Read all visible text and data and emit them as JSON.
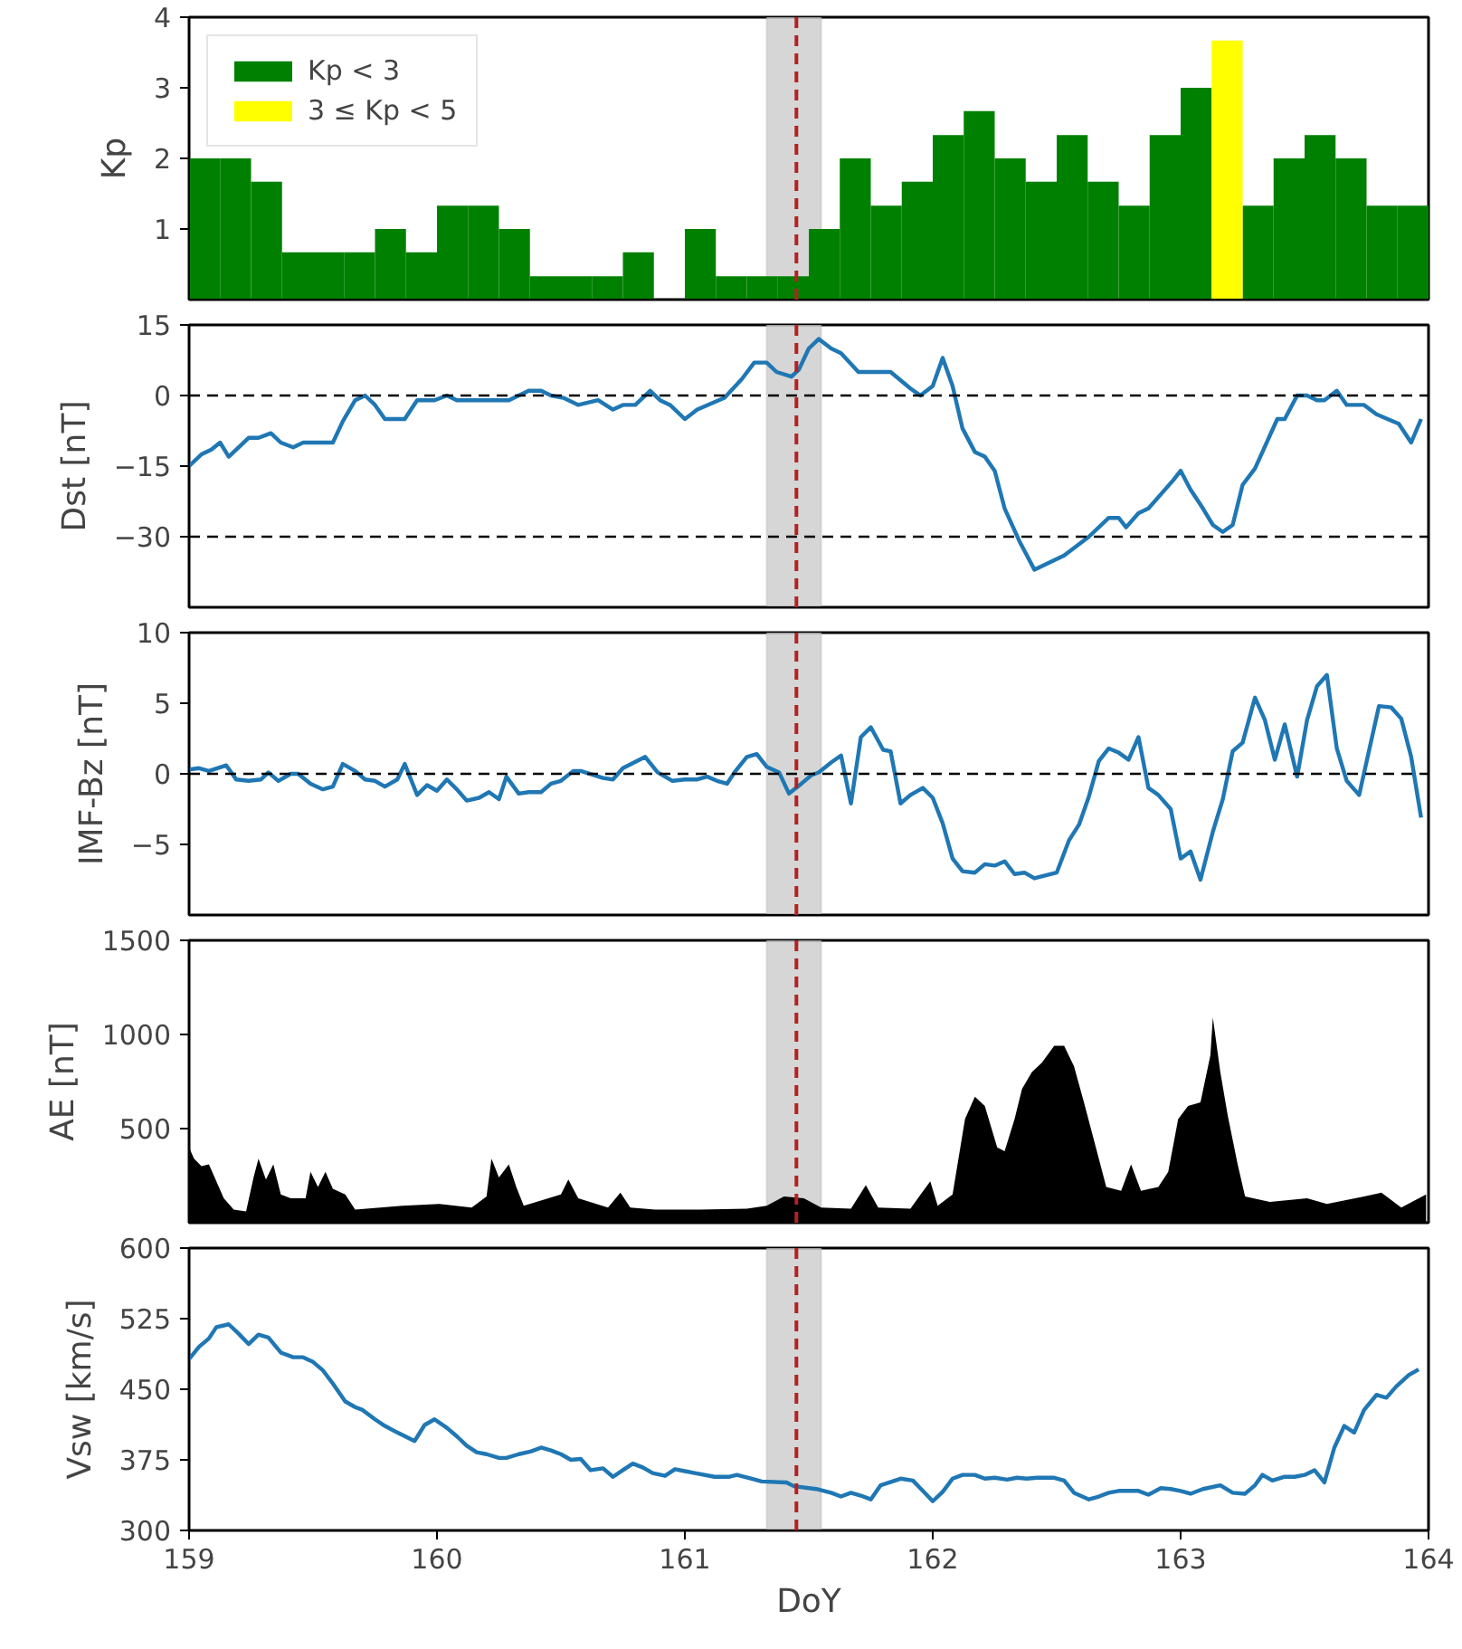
{
  "chart_data": [
    {
      "type": "bar",
      "ylabel": "Kp",
      "x": [
        159.0625,
        159.1875,
        159.3125,
        159.4375,
        159.5625,
        159.6875,
        159.8125,
        159.9375,
        160.0625,
        160.1875,
        160.3125,
        160.4375,
        160.5625,
        160.6875,
        160.8125,
        160.9375,
        161.0625,
        161.1875,
        161.3125,
        161.4375,
        161.5625,
        161.6875,
        161.8125,
        161.9375,
        162.0625,
        162.1875,
        162.3125,
        162.4375,
        162.5625,
        162.6875,
        162.8125,
        162.9375,
        163.0625,
        163.1875,
        163.3125,
        163.4375,
        163.5625,
        163.6875,
        163.8125,
        163.9375
      ],
      "series": [
        {
          "name": "Kp < 3",
          "color": "#008000",
          "values": [
            2,
            2,
            1.67,
            0.67,
            0.67,
            0.67,
            1,
            0.67,
            1.33,
            1.33,
            1,
            0.33,
            0.33,
            0.33,
            0.67,
            0,
            1,
            0.33,
            0.33,
            0.33,
            1,
            2,
            1.33,
            1.67,
            2.33,
            2.67,
            2,
            1.67,
            2.33,
            1.67,
            1.33,
            2.33,
            3,
            null,
            1.33,
            2,
            2.33,
            2,
            1.33,
            1.33
          ]
        },
        {
          "name": "3 ≤ Kp < 5",
          "color": "#ffff00",
          "values": [
            null,
            null,
            null,
            null,
            null,
            null,
            null,
            null,
            null,
            null,
            null,
            null,
            null,
            null,
            null,
            null,
            null,
            null,
            null,
            null,
            null,
            null,
            null,
            null,
            null,
            null,
            null,
            null,
            null,
            null,
            null,
            null,
            null,
            3.67,
            null,
            null,
            null,
            null,
            null,
            null
          ]
        }
      ],
      "xlim": [
        159,
        164
      ],
      "xticks": [
        159,
        160,
        161,
        162,
        163,
        164
      ],
      "ylim": [
        0,
        4
      ],
      "yticks": [
        1,
        2,
        3,
        4
      ],
      "tick_labels": "y",
      "legend": "top left",
      "grid": false,
      "bands": [
        {
          "axis": "x",
          "from": 161.33,
          "to": 161.55,
          "color": "#c8c8c8"
        }
      ],
      "ref_lines": [
        {
          "axis": "x",
          "value": 161.45,
          "color": "#b22222",
          "line_style": "dashed"
        }
      ]
    },
    {
      "type": "line",
      "ylabel": "Dst [nT]",
      "x": [
        159.0,
        159.05,
        159.09,
        159.125,
        159.16,
        159.24,
        159.28,
        159.33,
        159.37,
        159.42,
        159.46,
        159.58,
        159.62,
        159.67,
        159.71,
        159.75,
        159.79,
        159.87,
        159.92,
        159.99,
        160.04,
        160.08,
        160.29,
        160.37,
        160.42,
        160.46,
        160.51,
        160.57,
        160.65,
        160.71,
        160.75,
        160.8,
        160.86,
        160.9,
        160.94,
        161.0,
        161.05,
        161.16,
        161.23,
        161.28,
        161.33,
        161.37,
        161.43,
        161.46,
        161.5,
        161.54,
        161.59,
        161.63,
        161.7,
        161.83,
        161.91,
        161.95,
        162.0,
        162.04,
        162.08,
        162.12,
        162.17,
        162.21,
        162.25,
        162.29,
        162.35,
        162.38,
        162.41,
        162.53,
        162.63,
        162.71,
        162.75,
        162.78,
        162.83,
        162.87,
        162.97,
        163.0,
        163.04,
        163.09,
        163.13,
        163.17,
        163.21,
        163.25,
        163.3,
        163.39,
        163.42,
        163.47,
        163.51,
        163.55,
        163.58,
        163.63,
        163.67,
        163.74,
        163.79,
        163.88,
        163.93,
        163.97
      ],
      "series": [
        {
          "color": "#1f77b4",
          "values": [
            -15,
            -12.5,
            -11.5,
            -10,
            -13,
            -9,
            -9,
            -8,
            -10,
            -11,
            -10,
            -10,
            -5.5,
            -1,
            0,
            -2,
            -5,
            -5,
            -1,
            -1,
            0,
            -1,
            -1,
            1,
            1,
            0,
            -0.5,
            -2,
            -1,
            -3,
            -2,
            -2,
            1,
            -1,
            -2,
            -5,
            -3,
            -0.5,
            3.5,
            7,
            7,
            5,
            4,
            5.5,
            10,
            12,
            10,
            9,
            5,
            5,
            1.5,
            0,
            2,
            8,
            2,
            -7,
            -12,
            -13,
            -16,
            -24,
            -31,
            -34,
            -37,
            -34,
            -30,
            -26,
            -26,
            -28,
            -25,
            -24,
            -18,
            -16,
            -20,
            -24,
            -27.5,
            -29,
            -27.5,
            -19,
            -15.5,
            -5,
            -5,
            0,
            0,
            -1,
            -1,
            1,
            -2,
            -2,
            -4,
            -6,
            -10,
            -5
          ]
        }
      ],
      "xlim": [
        159,
        164
      ],
      "xticks": [
        159,
        160,
        161,
        162,
        163,
        164
      ],
      "ylim": [
        -45,
        15
      ],
      "yticks": [
        {
          "value": -30,
          "label": "−30"
        },
        {
          "value": -15,
          "label": "−15"
        },
        0,
        15
      ],
      "tick_labels": "y",
      "grid": false,
      "bands": [
        {
          "axis": "x",
          "from": 161.33,
          "to": 161.55,
          "color": "#c8c8c8"
        }
      ],
      "ref_lines": [
        {
          "axis": "x",
          "value": 161.45,
          "color": "#b22222",
          "line_style": "dashed"
        },
        {
          "axis": "y",
          "value": 0,
          "color": "#000000",
          "line_style": "dashed"
        },
        {
          "axis": "y",
          "value": -30,
          "color": "#000000",
          "line_style": "dashed"
        }
      ]
    },
    {
      "type": "line",
      "ylabel": "IMF-Bz [nT]",
      "x": [
        159.0,
        159.04,
        159.08,
        159.15,
        159.19,
        159.24,
        159.29,
        159.32,
        159.36,
        159.41,
        159.44,
        159.49,
        159.54,
        159.58,
        159.62,
        159.67,
        159.71,
        159.75,
        159.79,
        159.84,
        159.87,
        159.92,
        159.96,
        160.0,
        160.04,
        160.08,
        160.12,
        160.17,
        160.21,
        160.25,
        160.28,
        160.33,
        160.37,
        160.42,
        160.46,
        160.5,
        160.55,
        160.58,
        160.67,
        160.71,
        160.75,
        160.84,
        160.89,
        160.95,
        161.0,
        161.05,
        161.09,
        161.13,
        161.17,
        161.2,
        161.25,
        161.29,
        161.33,
        161.38,
        161.42,
        161.47,
        161.51,
        161.54,
        161.59,
        161.63,
        161.67,
        161.71,
        161.75,
        161.8,
        161.83,
        161.87,
        161.91,
        161.96,
        162.0,
        162.04,
        162.08,
        162.12,
        162.17,
        162.21,
        162.25,
        162.29,
        162.33,
        162.37,
        162.41,
        162.5,
        162.55,
        162.59,
        162.63,
        162.67,
        162.71,
        162.75,
        162.79,
        162.83,
        162.87,
        162.91,
        162.96,
        163.0,
        163.04,
        163.08,
        163.13,
        163.17,
        163.21,
        163.25,
        163.3,
        163.34,
        163.38,
        163.42,
        163.47,
        163.51,
        163.55,
        163.59,
        163.63,
        163.67,
        163.72,
        163.8,
        163.85,
        163.89,
        163.93,
        163.97
      ],
      "series": [
        {
          "color": "#1f77b4",
          "values": [
            0.3,
            0.4,
            0.2,
            0.6,
            -0.4,
            -0.5,
            -0.4,
            0.1,
            -0.5,
            0,
            0,
            -0.7,
            -1.1,
            -0.9,
            0.7,
            0.2,
            -0.4,
            -0.5,
            -0.9,
            -0.4,
            0.7,
            -1.5,
            -0.8,
            -1.2,
            -0.4,
            -1.1,
            -1.9,
            -1.7,
            -1.3,
            -1.8,
            -0.2,
            -1.4,
            -1.3,
            -1.3,
            -0.7,
            -0.5,
            0.2,
            0.2,
            -0.3,
            -0.4,
            0.4,
            1.2,
            0.1,
            -0.5,
            -0.4,
            -0.4,
            -0.2,
            -0.5,
            -0.7,
            0.1,
            1.2,
            1.4,
            0.5,
            0.1,
            -1.4,
            -0.7,
            -0.1,
            0.1,
            0.8,
            1.3,
            -2.1,
            2.6,
            3.3,
            1.7,
            1.6,
            -2.1,
            -1.5,
            -1,
            -1.7,
            -3.5,
            -6,
            -6.9,
            -7,
            -6.4,
            -6.5,
            -6.2,
            -7.1,
            -7,
            -7.4,
            -7,
            -4.7,
            -3.6,
            -1.6,
            0.9,
            1.8,
            1.5,
            1,
            2.6,
            -1,
            -1.5,
            -2.5,
            -6,
            -5.5,
            -7.5,
            -4.1,
            -1.8,
            1.6,
            2.2,
            5.4,
            3.8,
            1,
            3.5,
            -0.2,
            3.8,
            6.2,
            7,
            1.8,
            -0.5,
            -1.5,
            4.8,
            4.7,
            3.9,
            1.2,
            -3.1
          ]
        }
      ],
      "xlim": [
        159,
        164
      ],
      "xticks": [
        159,
        160,
        161,
        162,
        163,
        164
      ],
      "ylim": [
        -10,
        10
      ],
      "yticks": [
        {
          "value": -5,
          "label": "−5"
        },
        0,
        5,
        10
      ],
      "tick_labels": "y",
      "grid": false,
      "bands": [
        {
          "axis": "x",
          "from": 161.33,
          "to": 161.55,
          "color": "#c8c8c8"
        }
      ],
      "ref_lines": [
        {
          "axis": "x",
          "value": 161.45,
          "color": "#b22222",
          "line_style": "dashed"
        },
        {
          "axis": "y",
          "value": 0,
          "color": "#000000",
          "line_style": "dashed"
        }
      ]
    },
    {
      "type": "area",
      "ylabel": "AE [nT]",
      "x": [
        159.0,
        159.02,
        159.05,
        159.08,
        159.11,
        159.14,
        159.18,
        159.23,
        159.26,
        159.28,
        159.31,
        159.34,
        159.37,
        159.41,
        159.47,
        159.49,
        159.52,
        159.55,
        159.58,
        159.63,
        159.67,
        159.86,
        160.01,
        160.14,
        160.2,
        160.22,
        160.25,
        160.29,
        160.32,
        160.35,
        160.5,
        160.53,
        160.57,
        160.69,
        160.74,
        160.78,
        160.88,
        161.06,
        161.25,
        161.33,
        161.4,
        161.48,
        161.55,
        161.67,
        161.73,
        161.78,
        161.91,
        161.99,
        162.02,
        162.08,
        162.13,
        162.17,
        162.21,
        162.26,
        162.29,
        162.33,
        162.36,
        162.4,
        162.44,
        162.49,
        162.53,
        162.57,
        162.61,
        162.65,
        162.7,
        162.76,
        162.8,
        162.84,
        162.91,
        162.95,
        162.99,
        163.03,
        163.08,
        163.12,
        163.13,
        163.16,
        163.19,
        163.23,
        163.26,
        163.36,
        163.51,
        163.59,
        163.74,
        163.81,
        163.89,
        163.99
      ],
      "series": [
        {
          "color": "#000000",
          "values": [
            400,
            340,
            300,
            310,
            220,
            130,
            70,
            60,
            240,
            340,
            230,
            310,
            150,
            130,
            130,
            270,
            190,
            270,
            180,
            150,
            70,
            90,
            100,
            80,
            140,
            340,
            240,
            310,
            190,
            90,
            150,
            230,
            130,
            80,
            160,
            80,
            70,
            70,
            75,
            90,
            140,
            130,
            80,
            75,
            200,
            80,
            75,
            220,
            90,
            150,
            550,
            670,
            620,
            400,
            380,
            550,
            710,
            800,
            850,
            940,
            940,
            830,
            640,
            440,
            190,
            170,
            310,
            170,
            190,
            270,
            550,
            620,
            640,
            890,
            1090,
            800,
            570,
            310,
            140,
            110,
            130,
            100,
            140,
            160,
            80,
            150
          ]
        }
      ],
      "xlim": [
        159,
        164
      ],
      "xticks": [
        159,
        160,
        161,
        162,
        163,
        164
      ],
      "ylim": [
        0,
        1500
      ],
      "yticks": [
        500,
        1000,
        1500
      ],
      "tick_labels": "y",
      "grid": false,
      "bands": [
        {
          "axis": "x",
          "from": 161.33,
          "to": 161.55,
          "color": "#c8c8c8"
        }
      ],
      "ref_lines": [
        {
          "axis": "x",
          "value": 161.45,
          "color": "#b22222",
          "line_style": "dashed"
        }
      ]
    },
    {
      "type": "line",
      "ylabel": "Vsw [km/s]",
      "xlabel": "DoY",
      "x": [
        159.0,
        159.04,
        159.08,
        159.11,
        159.16,
        159.2,
        159.24,
        159.28,
        159.32,
        159.37,
        159.42,
        159.46,
        159.5,
        159.54,
        159.58,
        159.63,
        159.67,
        159.7,
        159.75,
        159.79,
        159.84,
        159.91,
        159.95,
        159.99,
        160.04,
        160.08,
        160.12,
        160.16,
        160.2,
        160.25,
        160.28,
        160.33,
        160.38,
        160.42,
        160.46,
        160.5,
        160.54,
        160.58,
        160.62,
        160.67,
        160.71,
        160.75,
        160.79,
        160.83,
        160.87,
        160.92,
        160.96,
        161.0,
        161.04,
        161.12,
        161.18,
        161.21,
        161.27,
        161.31,
        161.41,
        161.44,
        161.53,
        161.59,
        161.63,
        161.67,
        161.71,
        161.75,
        161.79,
        161.87,
        161.92,
        161.96,
        162.0,
        162.04,
        162.08,
        162.12,
        162.17,
        162.21,
        162.25,
        162.3,
        162.34,
        162.38,
        162.42,
        162.49,
        162.53,
        162.57,
        162.63,
        162.67,
        162.71,
        162.75,
        162.83,
        162.87,
        162.92,
        162.96,
        163.0,
        163.04,
        163.09,
        163.16,
        163.21,
        163.26,
        163.3,
        163.33,
        163.37,
        163.42,
        163.46,
        163.5,
        163.54,
        163.58,
        163.62,
        163.66,
        163.7,
        163.74,
        163.79,
        163.83,
        163.87,
        163.92,
        163.96
      ],
      "series": [
        {
          "color": "#1f77b4",
          "values": [
            482,
            495,
            504,
            516,
            519,
            509,
            498,
            508,
            505,
            489,
            484,
            484,
            479,
            470,
            456,
            437,
            431,
            428,
            418,
            411,
            404,
            395,
            412,
            418,
            409,
            400,
            390,
            383,
            381,
            377,
            377,
            381,
            384,
            388,
            385,
            381,
            375,
            376,
            364,
            366,
            357,
            364,
            371,
            367,
            361,
            358,
            365,
            363,
            361,
            357,
            357,
            359,
            355,
            352,
            351,
            347,
            344,
            340,
            336,
            340,
            337,
            333,
            348,
            355,
            353,
            342,
            331,
            341,
            355,
            359,
            359,
            355,
            356,
            354,
            356,
            355,
            356,
            356,
            353,
            340,
            333,
            336,
            340,
            342,
            342,
            338,
            345,
            344,
            342,
            339,
            344,
            348,
            340,
            339,
            348,
            359,
            353,
            357,
            357,
            359,
            364,
            351,
            388,
            411,
            404,
            428,
            444,
            441,
            453,
            465,
            471
          ]
        }
      ],
      "xlim": [
        159,
        164
      ],
      "xticks": [
        159,
        160,
        161,
        162,
        163,
        164
      ],
      "ylim": [
        300,
        600
      ],
      "yticks": [
        300,
        375,
        450,
        525,
        600
      ],
      "grid": false,
      "bands": [
        {
          "axis": "x",
          "from": 161.33,
          "to": 161.55,
          "color": "#c8c8c8"
        }
      ],
      "ref_lines": [
        {
          "axis": "x",
          "value": 161.45,
          "color": "#b22222",
          "line_style": "dashed"
        }
      ]
    }
  ]
}
